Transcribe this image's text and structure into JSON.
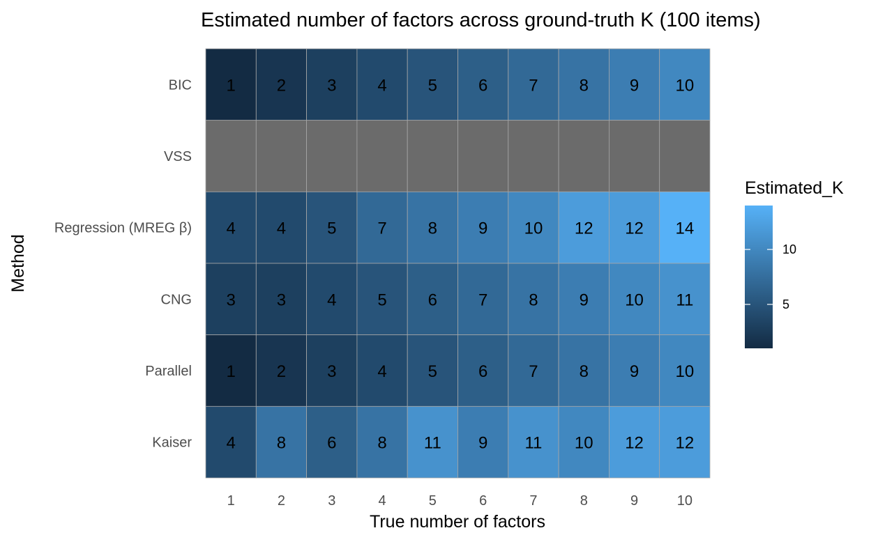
{
  "chart_data": {
    "type": "heatmap",
    "title": "Estimated number of factors across ground-truth K (100 items)",
    "xlabel": "True number of factors",
    "ylabel": "Method",
    "x": [
      "1",
      "2",
      "3",
      "4",
      "5",
      "6",
      "7",
      "8",
      "9",
      "10"
    ],
    "y": [
      "BIC",
      "VSS",
      "Regression (MREG β)",
      "CNG",
      "Parallel",
      "Kaiser"
    ],
    "values": [
      [
        1,
        2,
        3,
        4,
        5,
        6,
        7,
        8,
        9,
        10
      ],
      [
        null,
        null,
        null,
        null,
        null,
        null,
        null,
        null,
        null,
        null
      ],
      [
        4,
        4,
        5,
        7,
        8,
        9,
        10,
        12,
        12,
        14
      ],
      [
        3,
        3,
        4,
        5,
        6,
        7,
        8,
        9,
        10,
        11
      ],
      [
        1,
        2,
        3,
        4,
        5,
        6,
        7,
        8,
        9,
        10
      ],
      [
        4,
        8,
        6,
        8,
        11,
        9,
        11,
        10,
        12,
        12
      ]
    ],
    "missing_color": "#6b6b6b",
    "color_scale": {
      "low": "#132b43",
      "high": "#56b1f7",
      "min": 1,
      "max": 14
    },
    "legend": {
      "title": "Estimated_K",
      "ticks": [
        5,
        10
      ],
      "position": "right"
    },
    "grid": true
  }
}
